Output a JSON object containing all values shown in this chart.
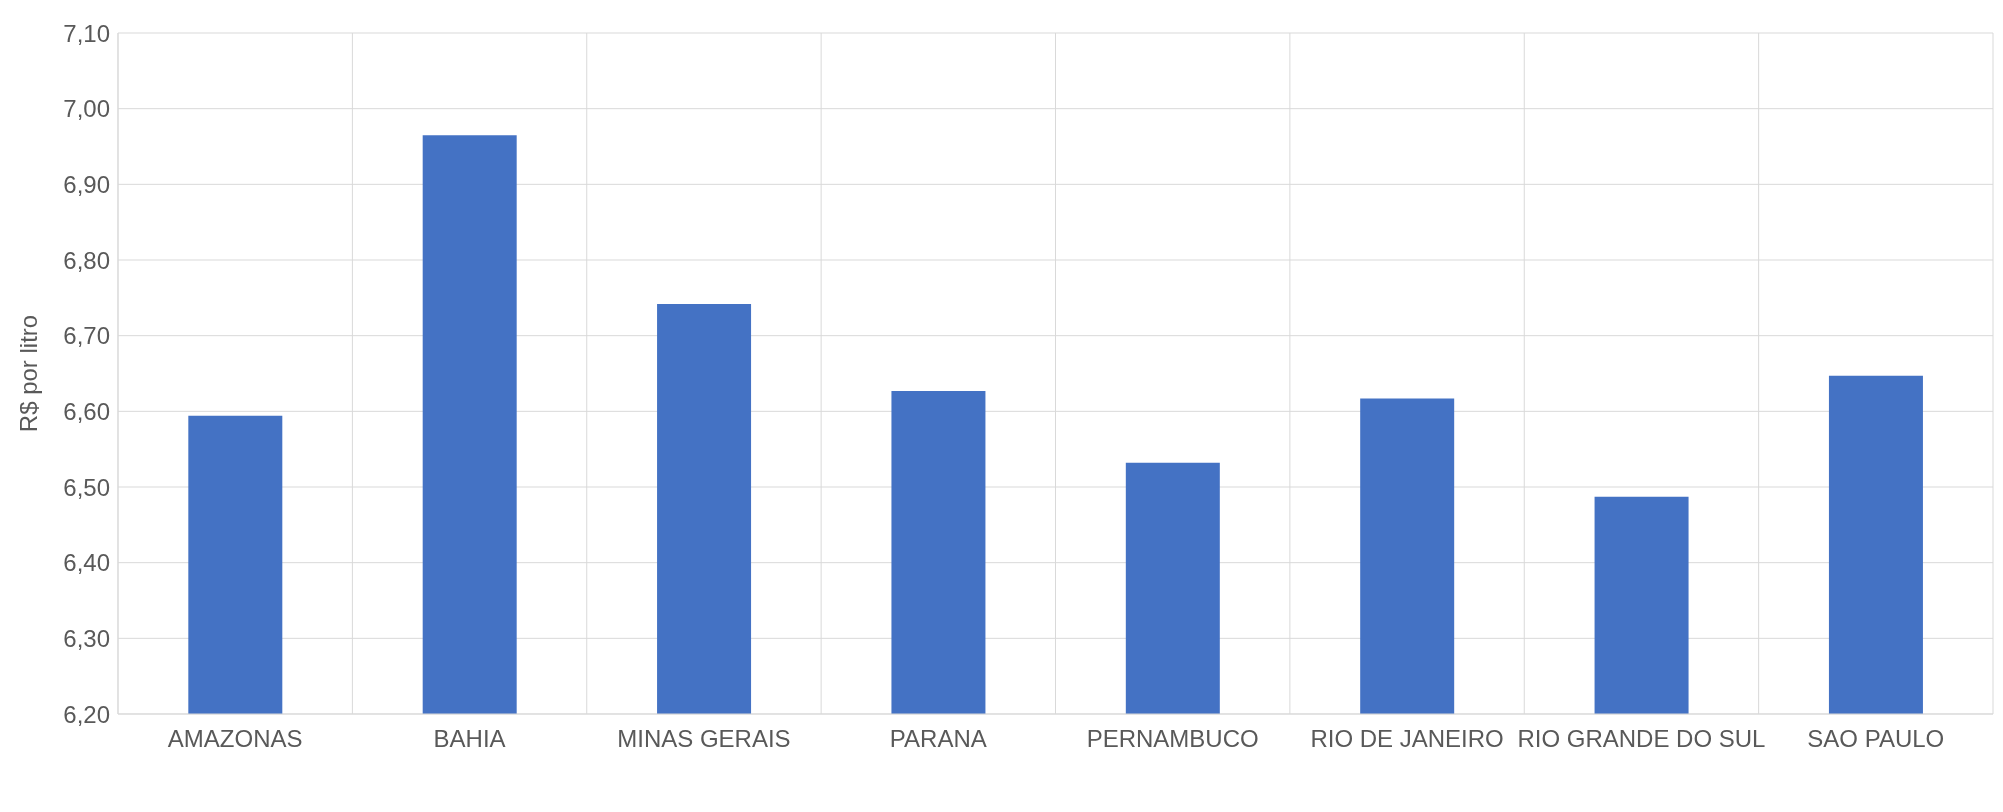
{
  "chart_data": {
    "type": "bar",
    "ylabel": "R$ por litro",
    "categories": [
      "AMAZONAS",
      "BAHIA",
      "MINAS GERAIS",
      "PARANA",
      "PERNAMBUCO",
      "RIO DE JANEIRO",
      "RIO GRANDE DO SUL",
      "SAO PAULO"
    ],
    "values": [
      6.594,
      6.965,
      6.742,
      6.627,
      6.532,
      6.617,
      6.487,
      6.647
    ],
    "color": "#4472c4",
    "ylim": [
      6.2,
      7.1
    ],
    "yticks": [
      {
        "value": 6.2,
        "label": "6,20"
      },
      {
        "value": 6.3,
        "label": "6,30"
      },
      {
        "value": 6.4,
        "label": "6,40"
      },
      {
        "value": 6.5,
        "label": "6,50"
      },
      {
        "value": 6.6,
        "label": "6,60"
      },
      {
        "value": 6.7,
        "label": "6,70"
      },
      {
        "value": 6.8,
        "label": "6,80"
      },
      {
        "value": 6.9,
        "label": "6,90"
      },
      {
        "value": 7.0,
        "label": "7,00"
      },
      {
        "value": 7.1,
        "label": "7,10"
      }
    ],
    "grid": true
  }
}
